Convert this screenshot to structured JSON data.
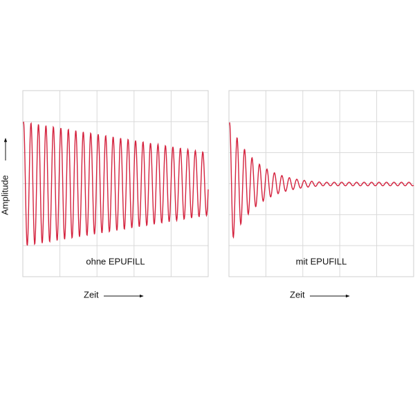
{
  "y_label": "Amplitude",
  "panels": [
    {
      "label": "ohne EPUFILL",
      "x_label": "Zeit"
    },
    {
      "label": "mit EPUFILL",
      "x_label": "Zeit"
    }
  ]
}
